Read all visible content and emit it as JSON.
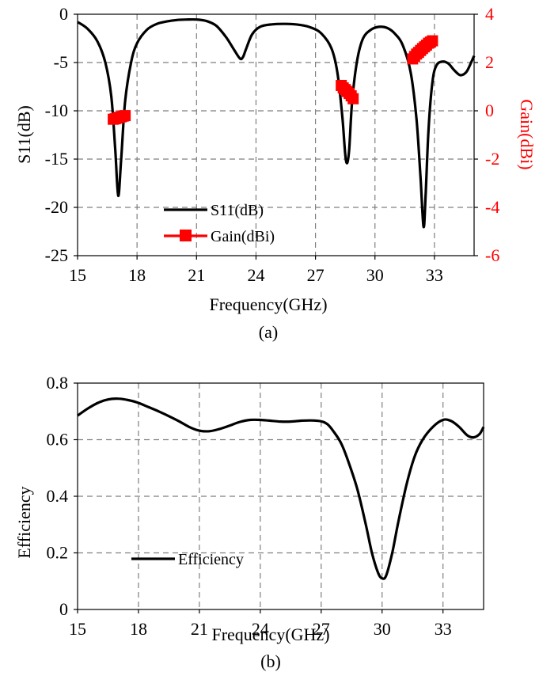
{
  "chart_data": [
    {
      "type": "line",
      "panel_label": "(a)",
      "xlabel": "Frequency(GHz)",
      "ylabel": "S11(dB)",
      "y2label": "Gain(dBi)",
      "xlim": [
        15,
        35
      ],
      "ylim": [
        -25,
        0
      ],
      "y2lim": [
        -6,
        4
      ],
      "xticks": [
        15,
        18,
        21,
        24,
        27,
        30,
        33
      ],
      "yticks": [
        0,
        -5,
        -10,
        -15,
        -20,
        -25
      ],
      "y2ticks": [
        4,
        2,
        0,
        -2,
        -4,
        -6
      ],
      "grid": true,
      "legend_position": "bottom-center",
      "colors": {
        "s11": "#000000",
        "gain": "#ff0000",
        "gain_axis": "#ff0000",
        "grid": "#7f7f7f"
      },
      "series": [
        {
          "name": "S11(dB)",
          "axis": "left",
          "x": [
            15,
            15.5,
            16,
            16.4,
            16.7,
            16.9,
            17.05,
            17.2,
            17.4,
            17.7,
            18,
            18.5,
            19,
            19.5,
            20,
            20.5,
            21,
            21.5,
            22,
            22.5,
            22.9,
            23.2,
            23.35,
            23.5,
            23.8,
            24.2,
            24.8,
            25.5,
            26.2,
            26.8,
            27.3,
            27.8,
            28.1,
            28.35,
            28.5,
            28.6,
            28.7,
            28.85,
            29.1,
            29.4,
            29.8,
            30.2,
            30.6,
            31,
            31.4,
            31.8,
            32.1,
            32.3,
            32.45,
            32.55,
            32.7,
            32.9,
            33.1,
            33.4,
            33.7,
            34,
            34.3,
            34.6,
            34.85,
            35
          ],
          "y": [
            -0.8,
            -1.5,
            -2.8,
            -5,
            -8.5,
            -14,
            -18.8,
            -15,
            -9,
            -5,
            -3,
            -1.6,
            -1,
            -0.75,
            -0.6,
            -0.55,
            -0.55,
            -0.7,
            -1.2,
            -2.4,
            -3.7,
            -4.6,
            -4.4,
            -3.6,
            -2.1,
            -1.3,
            -1.05,
            -1,
            -1.1,
            -1.4,
            -2,
            -3.5,
            -6,
            -10.5,
            -14.5,
            -15.4,
            -14,
            -9,
            -4.8,
            -2.5,
            -1.6,
            -1.3,
            -1.4,
            -2,
            -3.2,
            -6,
            -11,
            -17,
            -22,
            -19,
            -12,
            -7,
            -5.3,
            -4.9,
            -5.1,
            -5.8,
            -6.3,
            -6,
            -5,
            -4.3
          ]
        },
        {
          "name": "Gain(dBi)",
          "axis": "right",
          "x": [
            16.8,
            16.9,
            17.0,
            17.1,
            17.2,
            17.3,
            17.4,
            28.3,
            28.4,
            28.5,
            28.6,
            28.7,
            28.8,
            28.9,
            31.9,
            32.0,
            32.1,
            32.2,
            32.3,
            32.4,
            32.5,
            32.6,
            32.7,
            32.8,
            32.9
          ],
          "y": [
            -0.35,
            -0.33,
            -0.3,
            -0.27,
            -0.25,
            -0.22,
            -0.2,
            1.05,
            0.95,
            0.88,
            0.8,
            0.72,
            0.62,
            0.5,
            2.15,
            2.25,
            2.35,
            2.42,
            2.5,
            2.58,
            2.65,
            2.72,
            2.8,
            2.85,
            2.9
          ]
        }
      ]
    },
    {
      "type": "line",
      "panel_label": "(b)",
      "xlabel": "Frequency(GHz)",
      "ylabel": "Efficiency",
      "xlim": [
        15,
        35
      ],
      "ylim": [
        0,
        0.8
      ],
      "xticks": [
        15,
        18,
        21,
        24,
        27,
        30,
        33
      ],
      "yticks": [
        0.8,
        0.6,
        0.4,
        0.2,
        0
      ],
      "y_tick_labels": [
        "0.8",
        "0.6",
        "0.4",
        "0.2",
        "0"
      ],
      "grid": true,
      "legend_position": "bottom-left",
      "colors": {
        "efficiency": "#000000",
        "grid": "#7f7f7f"
      },
      "series": [
        {
          "name": "Efficiency",
          "x": [
            15,
            15.5,
            16,
            16.5,
            17,
            17.5,
            18,
            18.5,
            19,
            19.5,
            20,
            20.5,
            21,
            21.5,
            22,
            22.5,
            23,
            23.5,
            24,
            24.5,
            25,
            25.5,
            26,
            26.5,
            27,
            27.3,
            27.6,
            28,
            28.4,
            28.8,
            29.2,
            29.5,
            29.8,
            30,
            30.2,
            30.5,
            30.8,
            31.2,
            31.6,
            32,
            32.5,
            33,
            33.4,
            33.8,
            34.2,
            34.5,
            34.8,
            35
          ],
          "y": [
            0.685,
            0.71,
            0.73,
            0.742,
            0.745,
            0.74,
            0.73,
            0.715,
            0.7,
            0.683,
            0.665,
            0.645,
            0.632,
            0.63,
            0.638,
            0.65,
            0.663,
            0.67,
            0.67,
            0.667,
            0.664,
            0.664,
            0.667,
            0.668,
            0.665,
            0.655,
            0.63,
            0.585,
            0.51,
            0.42,
            0.3,
            0.2,
            0.13,
            0.11,
            0.12,
            0.2,
            0.31,
            0.44,
            0.54,
            0.6,
            0.645,
            0.67,
            0.666,
            0.645,
            0.615,
            0.608,
            0.62,
            0.645
          ]
        }
      ]
    }
  ]
}
